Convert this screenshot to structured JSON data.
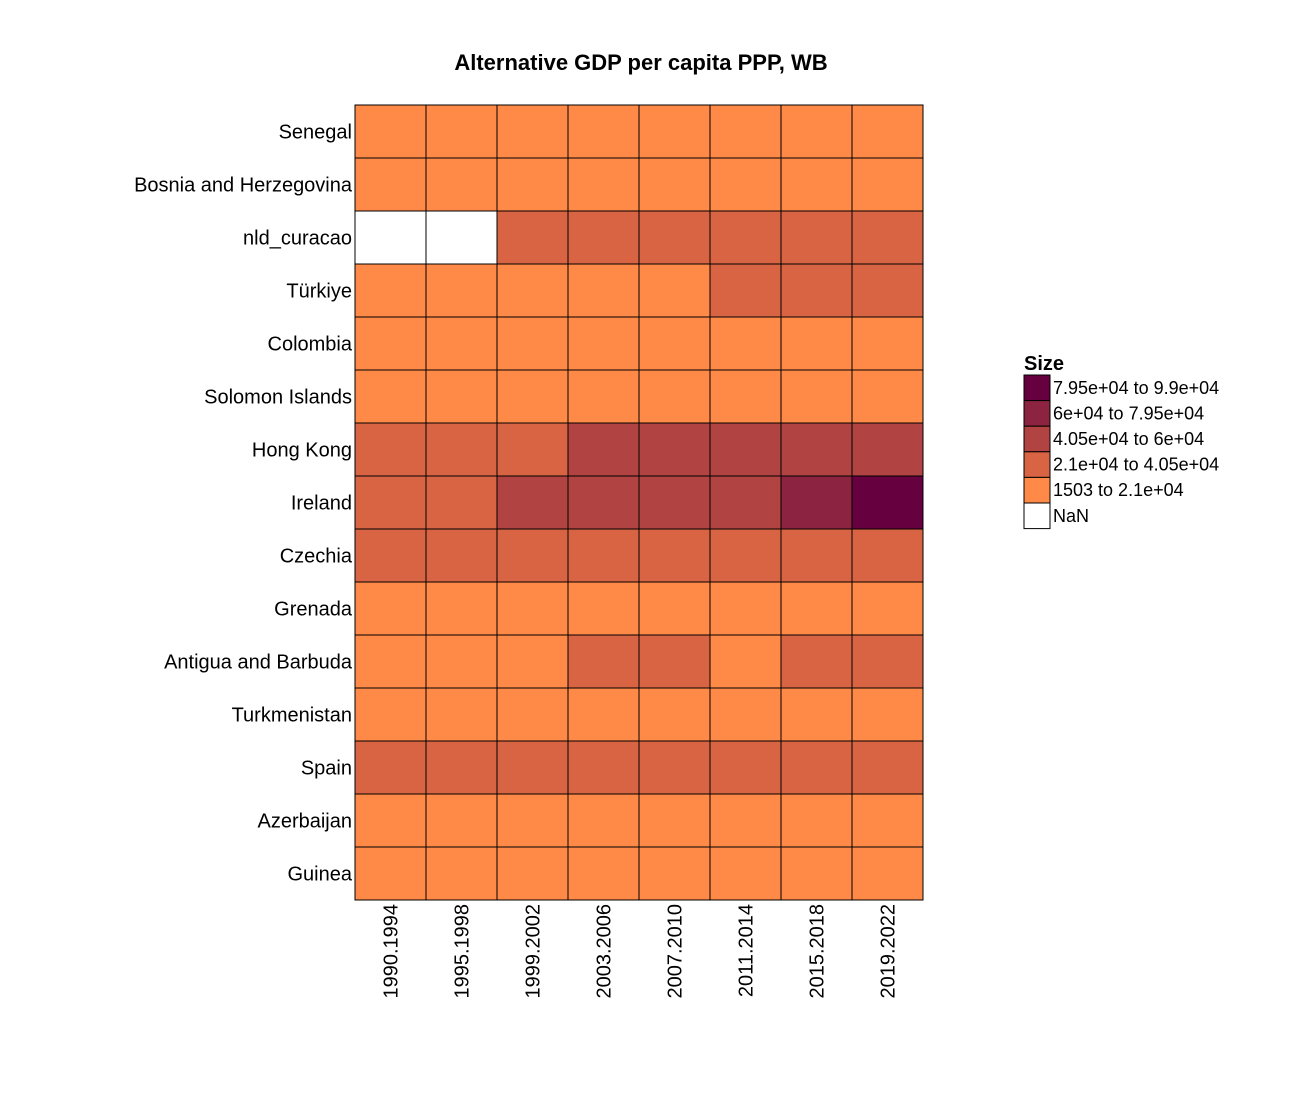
{
  "chart_data": {
    "type": "heatmap",
    "title": "Alternative GDP per capita PPP, WB",
    "columns": [
      "1990.1994",
      "1995.1998",
      "1999.2002",
      "2003.2006",
      "2007.2010",
      "2011.2014",
      "2015.2018",
      "2019.2022"
    ],
    "rows": [
      "Senegal",
      "Bosnia and Herzegovina",
      "nld_curacao",
      "Türkiye",
      "Colombia",
      "Solomon Islands",
      "Hong Kong",
      "Ireland",
      "Czechia",
      "Grenada",
      "Antigua and Barbuda",
      "Turkmenistan",
      "Spain",
      "Azerbaijan",
      "Guinea"
    ],
    "bin_index_matrix": [
      [
        0,
        0,
        0,
        0,
        0,
        0,
        0,
        0
      ],
      [
        0,
        0,
        0,
        0,
        0,
        0,
        0,
        0
      ],
      [
        -1,
        -1,
        1,
        1,
        1,
        1,
        1,
        1
      ],
      [
        0,
        0,
        0,
        0,
        0,
        1,
        1,
        1
      ],
      [
        0,
        0,
        0,
        0,
        0,
        0,
        0,
        0
      ],
      [
        0,
        0,
        0,
        0,
        0,
        0,
        0,
        0
      ],
      [
        1,
        1,
        1,
        2,
        2,
        2,
        2,
        2
      ],
      [
        1,
        1,
        2,
        2,
        2,
        2,
        3,
        4
      ],
      [
        1,
        1,
        1,
        1,
        1,
        1,
        1,
        1
      ],
      [
        0,
        0,
        0,
        0,
        0,
        0,
        0,
        0
      ],
      [
        0,
        0,
        0,
        1,
        1,
        0,
        1,
        1
      ],
      [
        0,
        0,
        0,
        0,
        0,
        0,
        0,
        0
      ],
      [
        1,
        1,
        1,
        1,
        1,
        1,
        1,
        1
      ],
      [
        0,
        0,
        0,
        0,
        0,
        0,
        0,
        0
      ],
      [
        0,
        0,
        0,
        0,
        0,
        0,
        0,
        0
      ]
    ],
    "legend": {
      "title": "Size",
      "position": "right",
      "bins": [
        {
          "label": "1503 to 2.1e+04",
          "color": "#FF8A48"
        },
        {
          "label": "2.1e+04 to 4.05e+04",
          "color": "#D96443"
        },
        {
          "label": "4.05e+04 to 6e+04",
          "color": "#B14342"
        },
        {
          "label": "6e+04 to 7.95e+04",
          "color": "#8C2340"
        },
        {
          "label": "7.95e+04 to 9.9e+04",
          "color": "#66003E"
        }
      ],
      "nan": {
        "label": "NaN",
        "color": "#FFFFFF"
      },
      "display_order": [
        4,
        3,
        2,
        1,
        0,
        -1
      ]
    }
  }
}
